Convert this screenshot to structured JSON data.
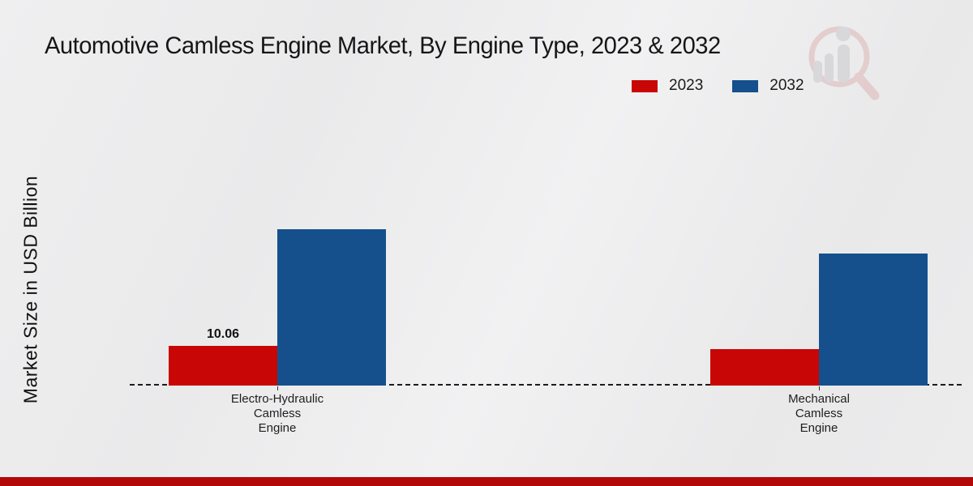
{
  "title": "Automotive Camless Engine Market, By Engine Type, 2023 & 2032",
  "ylabel": "Market Size in USD Billion",
  "legend": [
    {
      "label": "2023",
      "color": "#c90606"
    },
    {
      "label": "2032",
      "color": "#15508d"
    }
  ],
  "chart_data": {
    "type": "bar",
    "title": "Automotive Camless Engine Market, By Engine Type, 2023 & 2032",
    "xlabel": "",
    "ylabel": "Market Size in USD Billion",
    "categories": [
      "Electro-Hydraulic Camless Engine",
      "Mechanical Camless Engine"
    ],
    "categories_display": [
      "Electro-Hydraulic\nCamless\nEngine",
      "Mechanical\nCamless\nEngine"
    ],
    "series": [
      {
        "name": "2023",
        "color": "#c90606",
        "values": [
          10.06,
          9.2
        ]
      },
      {
        "name": "2032",
        "color": "#15508d",
        "values": [
          39.6,
          33.5
        ]
      }
    ],
    "value_labels": [
      {
        "series": "2023",
        "category_index": 0,
        "text": "10.06"
      }
    ],
    "ylim": [
      0,
      45
    ],
    "grid": false,
    "y_axis_visible": false,
    "baseline_style": "dashed",
    "legend_position": "top-right",
    "note": "Only the 10.06 bar is labeled; other values estimated from bar heights"
  },
  "footer": {
    "accent_color": "#b30808"
  },
  "watermark": {
    "name": "market-research-magnifier-logo"
  }
}
